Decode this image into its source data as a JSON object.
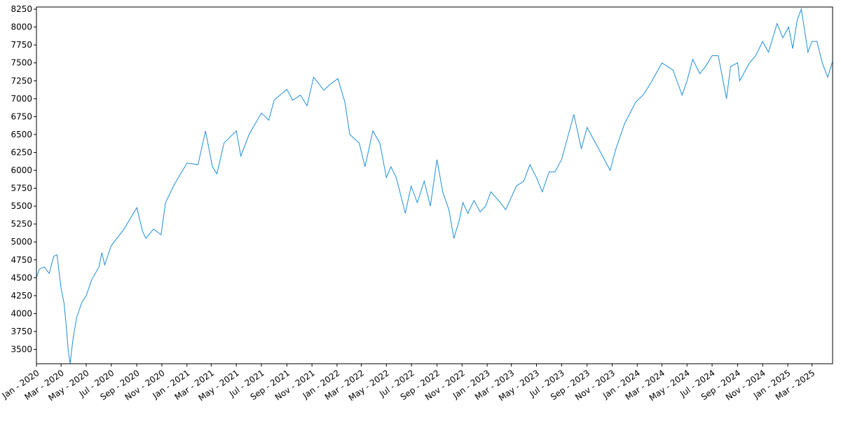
{
  "chart_data": {
    "type": "line",
    "title": "",
    "xlabel": "",
    "ylabel": "",
    "x_range": [
      "2020-01-01",
      "2025-04-20"
    ],
    "ylim": [
      3300,
      8280
    ],
    "y_ticks": [
      3500,
      3750,
      4000,
      4250,
      4500,
      4750,
      5000,
      5250,
      5500,
      5750,
      6000,
      6250,
      6500,
      6750,
      7000,
      7250,
      7500,
      7750,
      8000,
      8250
    ],
    "x_ticks": [
      {
        "date": "2020-01-01",
        "label": "Jan - 2020"
      },
      {
        "date": "2020-03-01",
        "label": "Mar - 2020"
      },
      {
        "date": "2020-05-01",
        "label": "May - 2020"
      },
      {
        "date": "2020-07-01",
        "label": "Jul - 2020"
      },
      {
        "date": "2020-09-01",
        "label": "Sep - 2020"
      },
      {
        "date": "2020-11-01",
        "label": "Nov - 2020"
      },
      {
        "date": "2021-01-01",
        "label": "Jan - 2021"
      },
      {
        "date": "2021-03-01",
        "label": "Mar - 2021"
      },
      {
        "date": "2021-05-01",
        "label": "May - 2021"
      },
      {
        "date": "2021-07-01",
        "label": "Jul - 2021"
      },
      {
        "date": "2021-09-01",
        "label": "Sep - 2021"
      },
      {
        "date": "2021-11-01",
        "label": "Nov - 2021"
      },
      {
        "date": "2022-01-01",
        "label": "Jan - 2022"
      },
      {
        "date": "2022-03-01",
        "label": "Mar - 2022"
      },
      {
        "date": "2022-05-01",
        "label": "May - 2022"
      },
      {
        "date": "2022-07-01",
        "label": "Jul - 2022"
      },
      {
        "date": "2022-09-01",
        "label": "Sep - 2022"
      },
      {
        "date": "2022-11-01",
        "label": "Nov - 2022"
      },
      {
        "date": "2023-01-01",
        "label": "Jan - 2023"
      },
      {
        "date": "2023-03-01",
        "label": "Mar - 2023"
      },
      {
        "date": "2023-05-01",
        "label": "May - 2023"
      },
      {
        "date": "2023-07-01",
        "label": "Jul - 2023"
      },
      {
        "date": "2023-09-01",
        "label": "Sep - 2023"
      },
      {
        "date": "2023-11-01",
        "label": "Nov - 2023"
      },
      {
        "date": "2024-01-01",
        "label": "Jan - 2024"
      },
      {
        "date": "2024-03-01",
        "label": "Mar - 2024"
      },
      {
        "date": "2024-05-01",
        "label": "May - 2024"
      },
      {
        "date": "2024-07-01",
        "label": "Jul - 2024"
      },
      {
        "date": "2024-09-01",
        "label": "Sep - 2024"
      },
      {
        "date": "2024-11-01",
        "label": "Nov - 2024"
      },
      {
        "date": "2025-01-01",
        "label": "Jan - 2025"
      },
      {
        "date": "2025-03-01",
        "label": "Mar - 2025"
      }
    ],
    "grid": false,
    "legend": "none",
    "line_color": "#1f8fd8",
    "series": [
      {
        "x": [
          "2020-01-01",
          "2020-01-08",
          "2020-01-20",
          "2020-02-01",
          "2020-02-12",
          "2020-02-20",
          "2020-03-01",
          "2020-03-08",
          "2020-03-14",
          "2020-03-18",
          "2020-03-23",
          "2020-03-30",
          "2020-04-08",
          "2020-04-20",
          "2020-05-01",
          "2020-05-15",
          "2020-06-01",
          "2020-06-08",
          "2020-06-15",
          "2020-07-01",
          "2020-08-01",
          "2020-09-01",
          "2020-09-15",
          "2020-09-23",
          "2020-10-12",
          "2020-10-30",
          "2020-11-10",
          "2020-12-01",
          "2021-01-01",
          "2021-01-28",
          "2021-02-15",
          "2021-03-04",
          "2021-03-15",
          "2021-04-01",
          "2021-05-01",
          "2021-05-12",
          "2021-06-01",
          "2021-07-01",
          "2021-07-19",
          "2021-08-01",
          "2021-09-01",
          "2021-09-15",
          "2021-10-04",
          "2021-10-20",
          "2021-11-05",
          "2021-11-30",
          "2021-12-15",
          "2022-01-03",
          "2022-01-20",
          "2022-02-01",
          "2022-02-24",
          "2022-03-10",
          "2022-03-29",
          "2022-04-15",
          "2022-05-01",
          "2022-05-12",
          "2022-05-25",
          "2022-06-16",
          "2022-06-30",
          "2022-07-15",
          "2022-08-01",
          "2022-08-16",
          "2022-09-01",
          "2022-09-15",
          "2022-09-30",
          "2022-10-12",
          "2022-10-25",
          "2022-11-03",
          "2022-11-15",
          "2022-11-30",
          "2022-12-15",
          "2022-12-28",
          "2023-01-10",
          "2023-02-02",
          "2023-02-15",
          "2023-03-13",
          "2023-03-31",
          "2023-04-15",
          "2023-05-01",
          "2023-05-15",
          "2023-06-01",
          "2023-06-15",
          "2023-07-01",
          "2023-07-31",
          "2023-08-18",
          "2023-09-01",
          "2023-09-15",
          "2023-10-01",
          "2023-10-27",
          "2023-11-10",
          "2023-12-01",
          "2023-12-28",
          "2024-01-15",
          "2024-02-01",
          "2024-03-01",
          "2024-03-28",
          "2024-04-19",
          "2024-05-01",
          "2024-05-15",
          "2024-06-01",
          "2024-06-15",
          "2024-07-01",
          "2024-07-16",
          "2024-08-05",
          "2024-08-15",
          "2024-09-01",
          "2024-09-06",
          "2024-09-30",
          "2024-10-15",
          "2024-11-01",
          "2024-11-15",
          "2024-12-06",
          "2024-12-20",
          "2025-01-03",
          "2025-01-13",
          "2025-01-24",
          "2025-02-03",
          "2025-02-19",
          "2025-03-01",
          "2025-03-13",
          "2025-03-26",
          "2025-04-08",
          "2025-04-20"
        ],
        "y": [
          4500,
          4620,
          4650,
          4560,
          4800,
          4820,
          4350,
          4150,
          3800,
          3500,
          3300,
          3650,
          3950,
          4150,
          4250,
          4480,
          4650,
          4850,
          4680,
          4950,
          5180,
          5480,
          5150,
          5050,
          5180,
          5100,
          5550,
          5800,
          6100,
          6080,
          6550,
          6050,
          5950,
          6380,
          6550,
          6200,
          6500,
          6800,
          6700,
          6980,
          7130,
          6980,
          7050,
          6900,
          7300,
          7120,
          7200,
          7280,
          6950,
          6500,
          6380,
          6050,
          6550,
          6380,
          5900,
          6050,
          5900,
          5400,
          5780,
          5550,
          5850,
          5500,
          6150,
          5700,
          5450,
          5050,
          5300,
          5550,
          5400,
          5580,
          5420,
          5500,
          5700,
          5550,
          5450,
          5780,
          5850,
          6080,
          5900,
          5700,
          5980,
          5980,
          6150,
          6780,
          6300,
          6600,
          6450,
          6280,
          6000,
          6300,
          6650,
          6950,
          7050,
          7200,
          7500,
          7400,
          7050,
          7250,
          7550,
          7350,
          7450,
          7600,
          7600,
          7000,
          7450,
          7500,
          7250,
          7500,
          7600,
          7800,
          7650,
          8050,
          7850,
          8000,
          7700,
          8100,
          8250,
          7650,
          7800,
          7800,
          7500,
          7300,
          7520
        ]
      }
    ]
  }
}
